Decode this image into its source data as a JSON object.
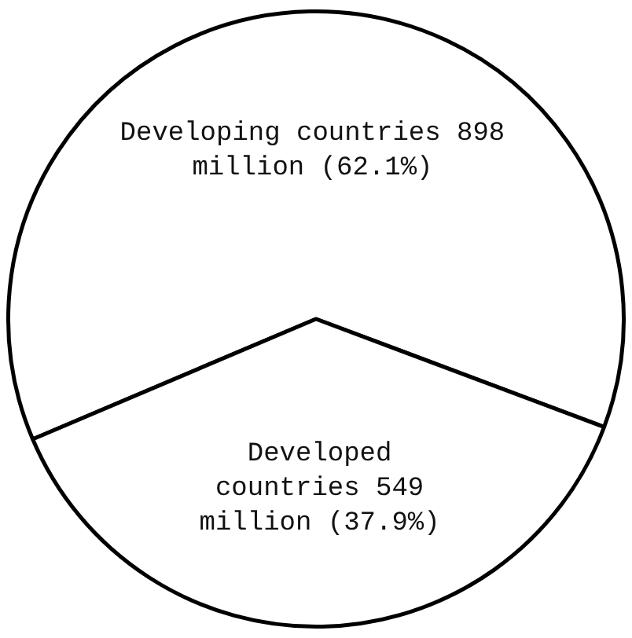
{
  "chart_data": {
    "type": "pie",
    "categories": [
      "Developing countries",
      "Developed countries"
    ],
    "values": [
      62.1,
      37.9
    ],
    "value_labels": [
      "898 million (62.1%)",
      "549 million (37.9%)"
    ],
    "colors": [
      "#ffffff",
      "#ffffff"
    ],
    "legend": false
  }
}
